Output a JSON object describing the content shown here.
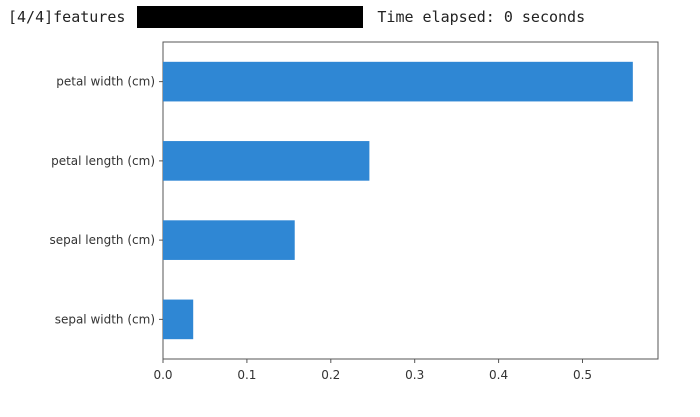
{
  "progress": {
    "counter": "[4/4]",
    "label": "features",
    "fraction": 1.0,
    "elapsed_text": "Time elapsed: 0 seconds"
  },
  "colors": {
    "bar": "#2f87d4",
    "axis": "#555555",
    "progress_fill": "#000000"
  },
  "chart_data": {
    "type": "bar",
    "orientation": "horizontal",
    "title": "",
    "xlabel": "",
    "ylabel": "",
    "categories": [
      "petal width (cm)",
      "petal length (cm)",
      "sepal length (cm)",
      "sepal width (cm)"
    ],
    "values": [
      0.56,
      0.246,
      0.157,
      0.036
    ],
    "xlim": [
      0.0,
      0.59
    ],
    "xticks": [
      "0.0",
      "0.1",
      "0.2",
      "0.3",
      "0.4",
      "0.5"
    ],
    "grid": false,
    "legend": "none"
  }
}
